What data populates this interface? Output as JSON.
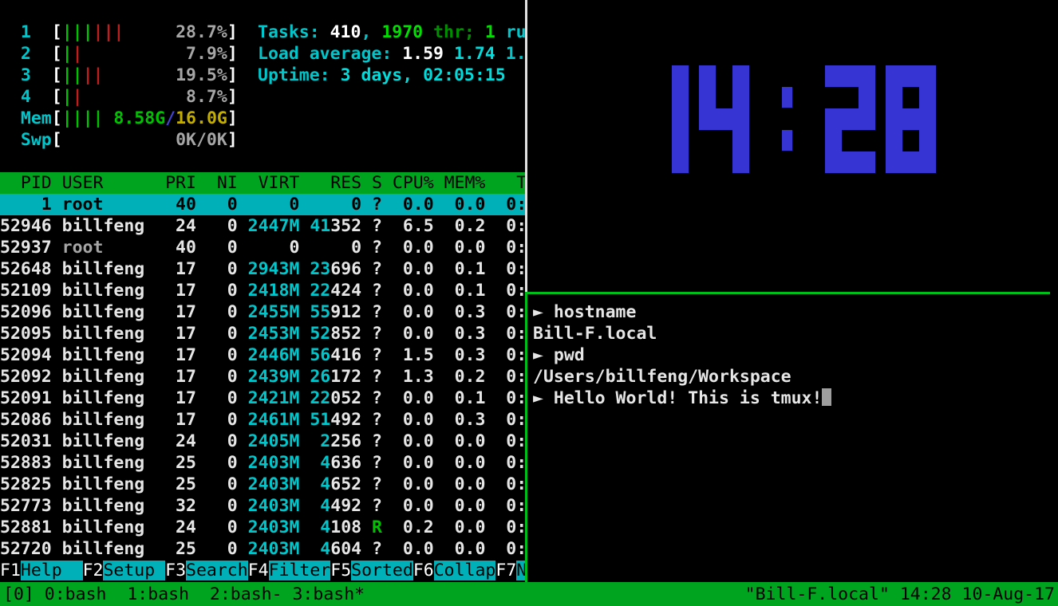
{
  "htop": {
    "meters": [
      {
        "name": "cpu1-meter",
        "segs": [
          {
            "t": "  ",
            "c": "w"
          },
          {
            "t": "1  ",
            "c": "cy"
          },
          {
            "t": "[",
            "c": "wb"
          },
          {
            "t": "|||",
            "c": "g"
          },
          {
            "t": "|||",
            "c": "red"
          },
          {
            "t": "     28.7%",
            "c": "gray"
          },
          {
            "t": "]",
            "c": "wb"
          }
        ]
      },
      {
        "name": "cpu2-meter",
        "segs": [
          {
            "t": "  ",
            "c": "w"
          },
          {
            "t": "2  ",
            "c": "cy"
          },
          {
            "t": "[",
            "c": "wb"
          },
          {
            "t": "|",
            "c": "g"
          },
          {
            "t": "|",
            "c": "red"
          },
          {
            "t": "          7.9%",
            "c": "gray"
          },
          {
            "t": "]",
            "c": "wb"
          }
        ]
      },
      {
        "name": "cpu3-meter",
        "segs": [
          {
            "t": "  ",
            "c": "w"
          },
          {
            "t": "3  ",
            "c": "cy"
          },
          {
            "t": "[",
            "c": "wb"
          },
          {
            "t": "||",
            "c": "g"
          },
          {
            "t": "||",
            "c": "red"
          },
          {
            "t": "       19.5%",
            "c": "gray"
          },
          {
            "t": "]",
            "c": "wb"
          }
        ]
      },
      {
        "name": "cpu4-meter",
        "segs": [
          {
            "t": "  ",
            "c": "w"
          },
          {
            "t": "4  ",
            "c": "cy"
          },
          {
            "t": "[",
            "c": "wb"
          },
          {
            "t": "|",
            "c": "g"
          },
          {
            "t": "|",
            "c": "red"
          },
          {
            "t": "          8.7%",
            "c": "gray"
          },
          {
            "t": "]",
            "c": "wb"
          }
        ]
      },
      {
        "name": "mem-meter",
        "segs": [
          {
            "t": "  ",
            "c": "w"
          },
          {
            "t": "Mem",
            "c": "cy"
          },
          {
            "t": "[",
            "c": "wb"
          },
          {
            "t": "||||",
            "c": "g"
          },
          {
            "t": " ",
            "c": "w"
          },
          {
            "t": "8.58G",
            "c": "g"
          },
          {
            "t": "/",
            "c": "blu"
          },
          {
            "t": "16.0G",
            "c": "yel"
          },
          {
            "t": "]",
            "c": "wb"
          }
        ]
      },
      {
        "name": "swap-meter",
        "segs": [
          {
            "t": "  ",
            "c": "w"
          },
          {
            "t": "Swp",
            "c": "cy"
          },
          {
            "t": "[",
            "c": "wb"
          },
          {
            "t": "           ",
            "c": "w"
          },
          {
            "t": "0K/0K",
            "c": "gray"
          },
          {
            "t": "]",
            "c": "wb"
          }
        ]
      }
    ],
    "info_lines": [
      {
        "name": "tasks-line",
        "segs": [
          {
            "t": "Tasks: ",
            "c": "cy"
          },
          {
            "t": "410",
            "c": "wb"
          },
          {
            "t": ", ",
            "c": "cy"
          },
          {
            "t": "1970",
            "c": "gb"
          },
          {
            "t": " thr;",
            "c": "dg"
          },
          {
            "t": " ",
            "c": "w"
          },
          {
            "t": "1",
            "c": "gb"
          },
          {
            "t": " ru",
            "c": "cy"
          }
        ]
      },
      {
        "name": "load-average-line",
        "segs": [
          {
            "t": "Load average: ",
            "c": "cy"
          },
          {
            "t": "1.59",
            "c": "wb"
          },
          {
            "t": " ",
            "c": "w"
          },
          {
            "t": "1.74",
            "c": "cyb"
          },
          {
            "t": " ",
            "c": "w"
          },
          {
            "t": "1.",
            "c": "cy"
          }
        ]
      },
      {
        "name": "uptime-line",
        "segs": [
          {
            "t": "Uptime: ",
            "c": "cy"
          },
          {
            "t": "3 days, 02:05:15",
            "c": "cyb"
          }
        ]
      }
    ],
    "table": {
      "header_text": "  PID USER      PRI  NI  VIRT   RES S CPU% MEM%   T",
      "rows": [
        {
          "pid": "1",
          "selected": true,
          "segs": [
            {
              "t": "    1 root       40   0     0     0 ?  0.0  0.0  0:",
              "c": "blk"
            }
          ]
        },
        {
          "pid": "52946",
          "selected": false,
          "segs": [
            {
              "t": "52946 billfeng   24   0 ",
              "c": "w"
            },
            {
              "t": "2447M",
              "c": "cy"
            },
            {
              "t": " ",
              "c": "w"
            },
            {
              "t": "41",
              "c": "cy"
            },
            {
              "t": "352 ?  6.5  0.2  0:",
              "c": "w"
            }
          ]
        },
        {
          "pid": "52937",
          "selected": false,
          "segs": [
            {
              "t": "52937 ",
              "c": "w"
            },
            {
              "t": "root     ",
              "c": "gray"
            },
            {
              "t": "  40   0     0     0 ?  0.0  0.0  0:",
              "c": "w"
            }
          ]
        },
        {
          "pid": "52648",
          "selected": false,
          "segs": [
            {
              "t": "52648 billfeng   17   0 ",
              "c": "w"
            },
            {
              "t": "2943M",
              "c": "cy"
            },
            {
              "t": " ",
              "c": "w"
            },
            {
              "t": "23",
              "c": "cy"
            },
            {
              "t": "696 ?  0.0  0.1  0:",
              "c": "w"
            }
          ]
        },
        {
          "pid": "52109",
          "selected": false,
          "segs": [
            {
              "t": "52109 billfeng   17   0 ",
              "c": "w"
            },
            {
              "t": "2418M",
              "c": "cy"
            },
            {
              "t": " ",
              "c": "w"
            },
            {
              "t": "22",
              "c": "cy"
            },
            {
              "t": "424 ?  0.0  0.1  0:",
              "c": "w"
            }
          ]
        },
        {
          "pid": "52096",
          "selected": false,
          "segs": [
            {
              "t": "52096 billfeng   17   0 ",
              "c": "w"
            },
            {
              "t": "2455M",
              "c": "cy"
            },
            {
              "t": " ",
              "c": "w"
            },
            {
              "t": "55",
              "c": "cy"
            },
            {
              "t": "912 ?  0.0  0.3  0:",
              "c": "w"
            }
          ]
        },
        {
          "pid": "52095",
          "selected": false,
          "segs": [
            {
              "t": "52095 billfeng   17   0 ",
              "c": "w"
            },
            {
              "t": "2453M",
              "c": "cy"
            },
            {
              "t": " ",
              "c": "w"
            },
            {
              "t": "52",
              "c": "cy"
            },
            {
              "t": "852 ?  0.0  0.3  0:",
              "c": "w"
            }
          ]
        },
        {
          "pid": "52094",
          "selected": false,
          "segs": [
            {
              "t": "52094 billfeng   17   0 ",
              "c": "w"
            },
            {
              "t": "2446M",
              "c": "cy"
            },
            {
              "t": " ",
              "c": "w"
            },
            {
              "t": "56",
              "c": "cy"
            },
            {
              "t": "416 ?  1.5  0.3  0:",
              "c": "w"
            }
          ]
        },
        {
          "pid": "52092",
          "selected": false,
          "segs": [
            {
              "t": "52092 billfeng   17   0 ",
              "c": "w"
            },
            {
              "t": "2439M",
              "c": "cy"
            },
            {
              "t": " ",
              "c": "w"
            },
            {
              "t": "26",
              "c": "cy"
            },
            {
              "t": "172 ?  1.3  0.2  0:",
              "c": "w"
            }
          ]
        },
        {
          "pid": "52091",
          "selected": false,
          "segs": [
            {
              "t": "52091 billfeng   17   0 ",
              "c": "w"
            },
            {
              "t": "2421M",
              "c": "cy"
            },
            {
              "t": " ",
              "c": "w"
            },
            {
              "t": "22",
              "c": "cy"
            },
            {
              "t": "052 ?  0.0  0.1  0:",
              "c": "w"
            }
          ]
        },
        {
          "pid": "52086",
          "selected": false,
          "segs": [
            {
              "t": "52086 billfeng   17   0 ",
              "c": "w"
            },
            {
              "t": "2461M",
              "c": "cy"
            },
            {
              "t": " ",
              "c": "w"
            },
            {
              "t": "51",
              "c": "cy"
            },
            {
              "t": "492 ?  0.0  0.3  0:",
              "c": "w"
            }
          ]
        },
        {
          "pid": "52031",
          "selected": false,
          "segs": [
            {
              "t": "52031 billfeng   24   0 ",
              "c": "w"
            },
            {
              "t": "2405M",
              "c": "cy"
            },
            {
              "t": "  ",
              "c": "w"
            },
            {
              "t": "2",
              "c": "cy"
            },
            {
              "t": "256 ?  0.0  0.0  0:",
              "c": "w"
            }
          ]
        },
        {
          "pid": "52883",
          "selected": false,
          "segs": [
            {
              "t": "52883 billfeng   25   0 ",
              "c": "w"
            },
            {
              "t": "2403M",
              "c": "cy"
            },
            {
              "t": "  ",
              "c": "w"
            },
            {
              "t": "4",
              "c": "cy"
            },
            {
              "t": "636 ?  0.0  0.0  0:",
              "c": "w"
            }
          ]
        },
        {
          "pid": "52825",
          "selected": false,
          "segs": [
            {
              "t": "52825 billfeng   25   0 ",
              "c": "w"
            },
            {
              "t": "2403M",
              "c": "cy"
            },
            {
              "t": "  ",
              "c": "w"
            },
            {
              "t": "4",
              "c": "cy"
            },
            {
              "t": "652 ?  0.0  0.0  0:",
              "c": "w"
            }
          ]
        },
        {
          "pid": "52773",
          "selected": false,
          "segs": [
            {
              "t": "52773 billfeng   32   0 ",
              "c": "w"
            },
            {
              "t": "2403M",
              "c": "cy"
            },
            {
              "t": "  ",
              "c": "w"
            },
            {
              "t": "4",
              "c": "cy"
            },
            {
              "t": "492 ?  0.0  0.0  0:",
              "c": "w"
            }
          ]
        },
        {
          "pid": "52881",
          "selected": false,
          "segs": [
            {
              "t": "52881 billfeng   24   0 ",
              "c": "w"
            },
            {
              "t": "2403M",
              "c": "cy"
            },
            {
              "t": "  ",
              "c": "w"
            },
            {
              "t": "4",
              "c": "cy"
            },
            {
              "t": "108 ",
              "c": "w"
            },
            {
              "t": "R",
              "c": "g"
            },
            {
              "t": "  0.2  0.0  0:",
              "c": "w"
            }
          ]
        },
        {
          "pid": "52720",
          "selected": false,
          "segs": [
            {
              "t": "52720 billfeng   25   0 ",
              "c": "w"
            },
            {
              "t": "2403M",
              "c": "cy"
            },
            {
              "t": "  ",
              "c": "w"
            },
            {
              "t": "4",
              "c": "cy"
            },
            {
              "t": "604 ?  0.0  0.0  0:",
              "c": "w"
            }
          ]
        }
      ]
    },
    "fkeys": [
      {
        "key": "F1",
        "label": "Help  "
      },
      {
        "key": "F2",
        "label": "Setup "
      },
      {
        "key": "F3",
        "label": "Search"
      },
      {
        "key": "F4",
        "label": "Filter"
      },
      {
        "key": "F5",
        "label": "Sorted"
      },
      {
        "key": "F6",
        "label": "Collap"
      },
      {
        "key": "F7",
        "label": "N"
      }
    ]
  },
  "clock": {
    "time": "14:28",
    "color": "#3634d3"
  },
  "terminal": {
    "prompt_symbol": "►",
    "lines": [
      {
        "prompt": "►",
        "text": "hostname"
      },
      {
        "text": "Bill-F.local"
      },
      {
        "prompt": "►",
        "text": "pwd"
      },
      {
        "text": "/Users/billfeng/Workspace"
      },
      {
        "prompt": "►",
        "text": "Hello World! This is tmux!",
        "cursor": true
      }
    ]
  },
  "tmux_status": {
    "session": "[0]",
    "windows": [
      "0:bash ",
      "1:bash ",
      "2:bash-",
      "3:bash*"
    ],
    "right": "\"Bill-F.local\" 14:28 10-Aug-17"
  },
  "palette": {
    "green_bg": "#00a41e",
    "cyan_bg": "#00b0b8",
    "divider_green": "#00be19",
    "divider_white": "#e2e2e2",
    "clock_blue": "#3634d3"
  }
}
